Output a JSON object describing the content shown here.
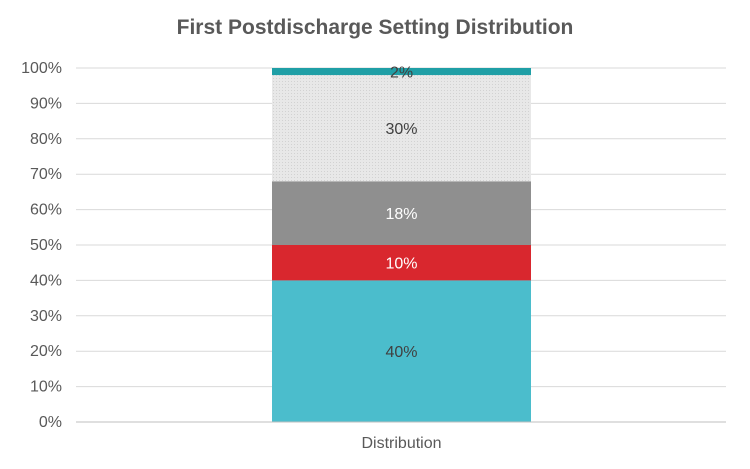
{
  "chart_data": {
    "type": "bar",
    "stacked": true,
    "title": "First Postdischarge Setting Distribution",
    "categories": [
      "Distribution"
    ],
    "series": [
      {
        "values": [
          40
        ],
        "label": "40%",
        "color": "#4bbdcc",
        "label_color": "#404040"
      },
      {
        "values": [
          10
        ],
        "label": "10%",
        "color": "#d9272e",
        "label_color": "#ffffff"
      },
      {
        "values": [
          18
        ],
        "label": "18%",
        "color": "#8f8f8f",
        "label_color": "#ffffff"
      },
      {
        "values": [
          30
        ],
        "label": "30%",
        "color": "#e3e3e3",
        "label_color": "#404040"
      },
      {
        "values": [
          2
        ],
        "label": "2%",
        "color": "#1f9fa6",
        "label_color": "#404040"
      }
    ],
    "ylim": [
      0,
      100
    ],
    "yticks": [
      "0%",
      "10%",
      "20%",
      "30%",
      "40%",
      "50%",
      "60%",
      "70%",
      "80%",
      "90%",
      "100%"
    ],
    "grid": true,
    "legend": "none"
  }
}
